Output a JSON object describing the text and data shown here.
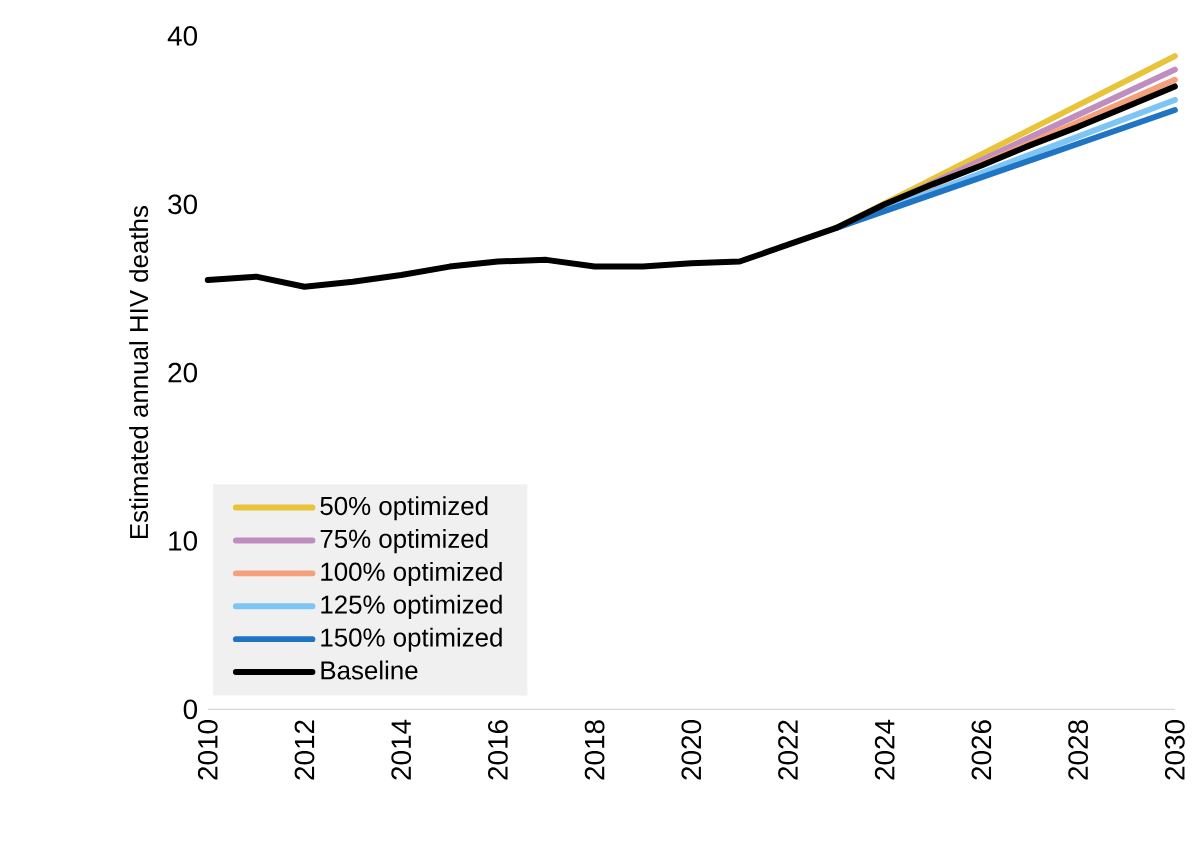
{
  "chart_data": {
    "type": "line",
    "ylabel": "Estimated annual HIV deaths",
    "series": [
      {
        "name": "50% optimized",
        "color": "#e8c43a",
        "x": [
          2023,
          2030
        ],
        "values": [
          28.6,
          38.8
        ]
      },
      {
        "name": "75% optimized",
        "color": "#c08dbf",
        "x": [
          2023,
          2030
        ],
        "values": [
          28.6,
          38.0
        ]
      },
      {
        "name": "100% optimized",
        "color": "#f4a07a",
        "x": [
          2023,
          2030
        ],
        "values": [
          28.6,
          37.4
        ]
      },
      {
        "name": "125% optimized",
        "color": "#7dc5f4",
        "x": [
          2023,
          2030
        ],
        "values": [
          28.6,
          36.2
        ]
      },
      {
        "name": "150% optimized",
        "color": "#1f74c4",
        "x": [
          2023,
          2030
        ],
        "values": [
          28.6,
          35.6
        ]
      },
      {
        "name": "Baseline",
        "color": "#000000",
        "x": [
          2010,
          2011,
          2012,
          2013,
          2014,
          2015,
          2016,
          2017,
          2018,
          2019,
          2020,
          2021,
          2022,
          2023,
          2024,
          2025,
          2026,
          2027,
          2028,
          2029,
          2030
        ],
        "values": [
          25.5,
          25.7,
          25.1,
          25.4,
          25.8,
          26.3,
          26.6,
          26.7,
          26.3,
          26.3,
          26.5,
          26.6,
          27.6,
          28.6,
          30.0,
          31.2,
          32.3,
          33.5,
          34.6,
          35.8,
          37.0
        ]
      }
    ],
    "xlim": [
      2010,
      2030
    ],
    "ylim": [
      0,
      40
    ],
    "xticks": [
      2010,
      2012,
      2014,
      2016,
      2018,
      2020,
      2022,
      2024,
      2026,
      2028,
      2030
    ],
    "yticks": [
      0,
      10,
      20,
      30,
      40
    ],
    "grid": false,
    "legend": "bottom left",
    "marker": "none",
    "line_style": "solid"
  }
}
